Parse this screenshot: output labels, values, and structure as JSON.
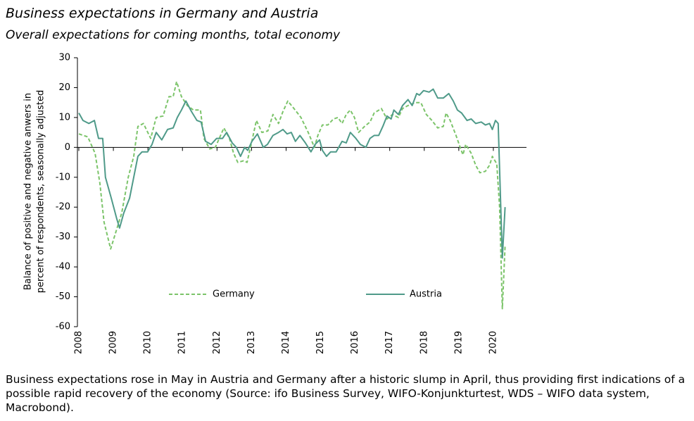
{
  "chart_data": {
    "type": "line",
    "title": "Business expectations in Germany and Austria",
    "subtitle": "Overall expectations for coming months, total economy",
    "y_label": [
      "Balance of positive and negative anwers in",
      "percent of respondents, seasonally adjusted"
    ],
    "note": "Business expectations rose in May in Austria and Germany after a historic slump in April, thus providing first indications of a possible rapid recovery of the economy (Source: ifo Business Survey, WIFO-Konjunkturtest, WDS – WIFO data system, Macrobond).",
    "xlim": [
      2008,
      2021
    ],
    "xticks": [
      2008,
      2009,
      2010,
      2011,
      2012,
      2013,
      2014,
      2015,
      2016,
      2017,
      2018,
      2019,
      2020
    ],
    "ylim": [
      -60,
      30
    ],
    "yticks": [
      -60,
      -50,
      -40,
      -30,
      -20,
      -10,
      0,
      10,
      20,
      30
    ],
    "legend": "lower center",
    "series": [
      {
        "name": "Germany",
        "color": "#7cc46a",
        "dashed": true,
        "x": [
          2008.0,
          2008.26,
          2008.47,
          2008.61,
          2008.73,
          2008.92,
          2009.08,
          2009.24,
          2009.43,
          2009.59,
          2009.71,
          2009.87,
          2010.08,
          2010.24,
          2010.44,
          2010.61,
          2010.73,
          2010.83,
          2010.97,
          2011.14,
          2011.32,
          2011.52,
          2011.62,
          2011.79,
          2011.95,
          2012.2,
          2012.36,
          2012.48,
          2012.6,
          2012.77,
          2012.87,
          2012.97,
          2013.14,
          2013.3,
          2013.47,
          2013.62,
          2013.78,
          2013.91,
          2014.05,
          2014.23,
          2014.43,
          2014.64,
          2014.82,
          2014.92,
          2015.05,
          2015.21,
          2015.37,
          2015.5,
          2015.62,
          2015.74,
          2015.86,
          2015.98,
          2016.1,
          2016.27,
          2016.43,
          2016.55,
          2016.76,
          2016.92,
          2017.08,
          2017.25,
          2017.37,
          2017.53,
          2017.74,
          2017.9,
          2018.06,
          2018.22,
          2018.39,
          2018.55,
          2018.63,
          2018.75,
          2018.92,
          2019.04,
          2019.12,
          2019.2,
          2019.36,
          2019.49,
          2019.61,
          2019.77,
          2019.89,
          2019.97,
          2020.1,
          2020.18,
          2020.26,
          2020.34
        ],
        "values": [
          4.5,
          3.5,
          -2,
          -12,
          -25,
          -34,
          -28,
          -22,
          -10,
          -3,
          7,
          8,
          3,
          10,
          10.5,
          17,
          17,
          22,
          17,
          14,
          12.5,
          12.5,
          3,
          -0.5,
          0,
          6.5,
          3,
          -2,
          -5,
          -4.5,
          -5,
          0,
          9,
          5,
          5.5,
          11,
          8,
          12,
          15.5,
          13,
          10,
          5,
          0,
          4,
          7.5,
          7.5,
          9.5,
          10,
          8,
          11,
          12.5,
          10,
          5,
          7,
          8.5,
          11.5,
          13,
          9.5,
          11,
          10,
          13,
          14,
          15,
          15,
          11,
          9,
          6.5,
          7,
          11.5,
          9,
          4,
          0,
          -2.5,
          1,
          -2,
          -6,
          -8.5,
          -8,
          -6,
          -3,
          -5.5,
          -20,
          -54,
          -33
        ]
      },
      {
        "name": "Austria",
        "color": "#4f9a89",
        "dashed": false,
        "x": [
          2008.0,
          2008.12,
          2008.29,
          2008.45,
          2008.57,
          2008.69,
          2008.77,
          2008.94,
          2009.1,
          2009.18,
          2009.3,
          2009.47,
          2009.59,
          2009.71,
          2009.83,
          2009.99,
          2010.12,
          2010.24,
          2010.4,
          2010.57,
          2010.73,
          2010.85,
          2010.97,
          2011.1,
          2011.26,
          2011.42,
          2011.54,
          2011.67,
          2011.83,
          2011.99,
          2012.16,
          2012.28,
          2012.44,
          2012.56,
          2012.68,
          2012.8,
          2012.89,
          2013.01,
          2013.17,
          2013.34,
          2013.46,
          2013.62,
          2013.78,
          2013.91,
          2014.03,
          2014.15,
          2014.27,
          2014.4,
          2014.56,
          2014.72,
          2014.84,
          2014.97,
          2015.05,
          2015.17,
          2015.29,
          2015.45,
          2015.62,
          2015.74,
          2015.86,
          2016.02,
          2016.15,
          2016.31,
          2016.43,
          2016.55,
          2016.68,
          2016.8,
          2016.92,
          2017.04,
          2017.12,
          2017.25,
          2017.37,
          2017.53,
          2017.65,
          2017.78,
          2017.86,
          2017.98,
          2018.14,
          2018.26,
          2018.39,
          2018.55,
          2018.71,
          2018.84,
          2018.96,
          2019.08,
          2019.24,
          2019.36,
          2019.49,
          2019.65,
          2019.77,
          2019.89,
          2019.97,
          2020.06,
          2020.14,
          2020.26,
          2020.34
        ],
        "values": [
          11.5,
          9,
          8,
          9,
          3,
          3,
          -10,
          -17,
          -24,
          -27,
          -22,
          -17,
          -10,
          -3,
          -1.5,
          -1.5,
          1,
          5,
          2.5,
          6,
          6.5,
          10,
          12.5,
          15.5,
          12,
          9,
          8.5,
          2,
          1,
          3,
          3,
          5,
          1.5,
          0,
          -3,
          0,
          -1,
          2,
          4.5,
          0,
          1,
          4,
          5,
          6,
          4.5,
          5,
          2,
          4,
          1.5,
          -1.5,
          1,
          2.5,
          -1,
          -3,
          -1.5,
          -1.5,
          2,
          1.5,
          5,
          3,
          1,
          0,
          3,
          4,
          4,
          7,
          10.5,
          9.5,
          12.5,
          11,
          14,
          16,
          14,
          18,
          17.5,
          19,
          18.5,
          19.5,
          16.5,
          16.5,
          18,
          15.5,
          12.5,
          11.5,
          9,
          9.5,
          8,
          8.5,
          7.5,
          8,
          6,
          9,
          8,
          -37,
          -20
        ]
      }
    ]
  }
}
